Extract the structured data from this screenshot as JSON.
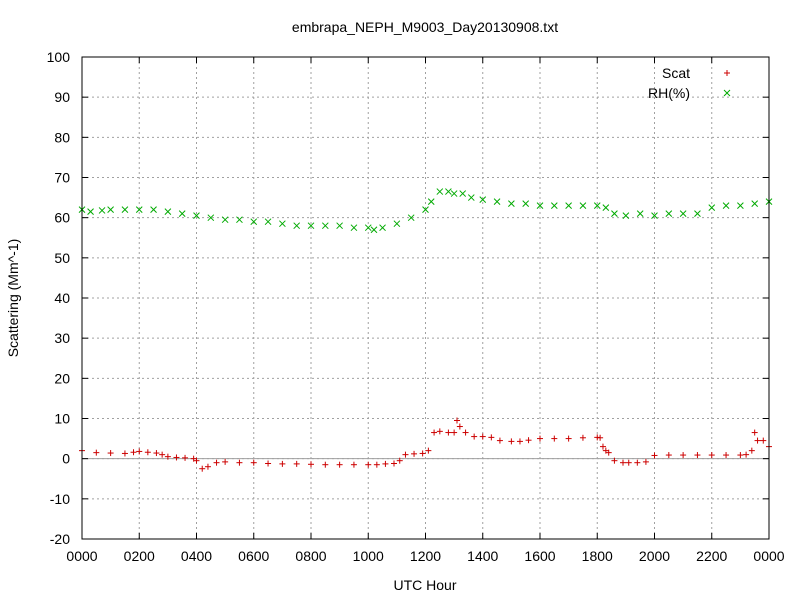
{
  "chart_data": {
    "type": "scatter",
    "title": "embrapa_NEPH_M9003_Day20130908.txt",
    "xlabel": "UTC Hour",
    "ylabel": "Scattering (Mm^-1)",
    "x_tick_labels": [
      "0000",
      "0200",
      "0400",
      "0600",
      "0800",
      "1000",
      "1200",
      "1400",
      "1600",
      "1800",
      "2000",
      "2200",
      "0000"
    ],
    "x_ticks": [
      0,
      2,
      4,
      6,
      8,
      10,
      12,
      14,
      16,
      18,
      20,
      22,
      24
    ],
    "y_ticks": [
      -20,
      -10,
      0,
      10,
      20,
      30,
      40,
      50,
      60,
      70,
      80,
      90,
      100
    ],
    "xlim": [
      0,
      24
    ],
    "ylim": [
      -20,
      100
    ],
    "grid": true,
    "legend_position": "top-right",
    "zero_line": true,
    "series": [
      {
        "name": "Scat",
        "marker": "plus",
        "color": "#cc0000",
        "x": [
          0.0,
          0.5,
          1.0,
          1.5,
          1.8,
          2.0,
          2.3,
          2.6,
          2.8,
          3.0,
          3.3,
          3.6,
          3.9,
          4.0,
          4.2,
          4.4,
          4.7,
          5.0,
          5.5,
          6.0,
          6.5,
          7.0,
          7.5,
          8.0,
          8.5,
          9.0,
          9.5,
          10.0,
          10.3,
          10.6,
          10.9,
          11.1,
          11.3,
          11.6,
          11.9,
          12.1,
          12.3,
          12.5,
          12.8,
          13.0,
          13.1,
          13.2,
          13.4,
          13.7,
          14.0,
          14.3,
          14.6,
          15.0,
          15.3,
          15.6,
          16.0,
          16.5,
          17.0,
          17.5,
          18.0,
          18.1,
          18.2,
          18.3,
          18.4,
          18.6,
          18.9,
          19.1,
          19.4,
          19.7,
          20.0,
          20.5,
          21.0,
          21.5,
          22.0,
          22.5,
          23.0,
          23.2,
          23.4,
          23.5,
          23.6,
          23.8,
          24.0
        ],
        "y": [
          2.0,
          1.5,
          1.4,
          1.3,
          1.6,
          1.8,
          1.6,
          1.4,
          1.0,
          0.5,
          0.3,
          0.2,
          0.0,
          -0.5,
          -2.5,
          -2.0,
          -1.0,
          -0.8,
          -1.0,
          -1.0,
          -1.2,
          -1.3,
          -1.3,
          -1.4,
          -1.5,
          -1.5,
          -1.5,
          -1.5,
          -1.5,
          -1.3,
          -1.2,
          -0.5,
          1.0,
          1.2,
          1.3,
          2.0,
          6.5,
          6.8,
          6.5,
          6.5,
          9.5,
          8.0,
          6.5,
          5.5,
          5.5,
          5.3,
          4.5,
          4.3,
          4.3,
          4.6,
          5.0,
          5.0,
          5.0,
          5.2,
          5.3,
          5.2,
          3.0,
          2.0,
          1.5,
          -0.5,
          -1.0,
          -1.0,
          -1.0,
          -0.8,
          0.8,
          0.9,
          0.9,
          0.9,
          0.9,
          0.9,
          0.9,
          1.0,
          2.0,
          6.5,
          4.5,
          4.5,
          3.0
        ]
      },
      {
        "name": "RH(%)",
        "marker": "cross",
        "color": "#00aa00",
        "x": [
          0.0,
          0.3,
          0.7,
          1.0,
          1.5,
          2.0,
          2.5,
          3.0,
          3.5,
          4.0,
          4.5,
          5.0,
          5.5,
          6.0,
          6.5,
          7.0,
          7.5,
          8.0,
          8.5,
          9.0,
          9.5,
          10.0,
          10.2,
          10.5,
          11.0,
          11.5,
          12.0,
          12.2,
          12.5,
          12.8,
          13.0,
          13.3,
          13.6,
          14.0,
          14.5,
          15.0,
          15.5,
          16.0,
          16.5,
          17.0,
          17.5,
          18.0,
          18.3,
          18.6,
          19.0,
          19.5,
          20.0,
          20.5,
          21.0,
          21.5,
          22.0,
          22.5,
          23.0,
          23.5,
          24.0
        ],
        "y": [
          62.0,
          61.5,
          61.8,
          62.0,
          62.0,
          62.0,
          62.0,
          61.5,
          61.0,
          60.5,
          60.0,
          59.5,
          59.5,
          59.0,
          59.0,
          58.5,
          58.0,
          58.0,
          58.0,
          58.0,
          57.5,
          57.5,
          57.0,
          57.5,
          58.5,
          60.0,
          62.0,
          64.0,
          66.5,
          66.5,
          66.0,
          66.0,
          65.0,
          64.5,
          64.0,
          63.5,
          63.5,
          63.0,
          63.0,
          63.0,
          63.0,
          63.0,
          62.5,
          61.0,
          60.5,
          61.0,
          60.5,
          61.0,
          61.0,
          61.0,
          62.5,
          63.0,
          63.0,
          63.5,
          64.0
        ]
      }
    ]
  }
}
